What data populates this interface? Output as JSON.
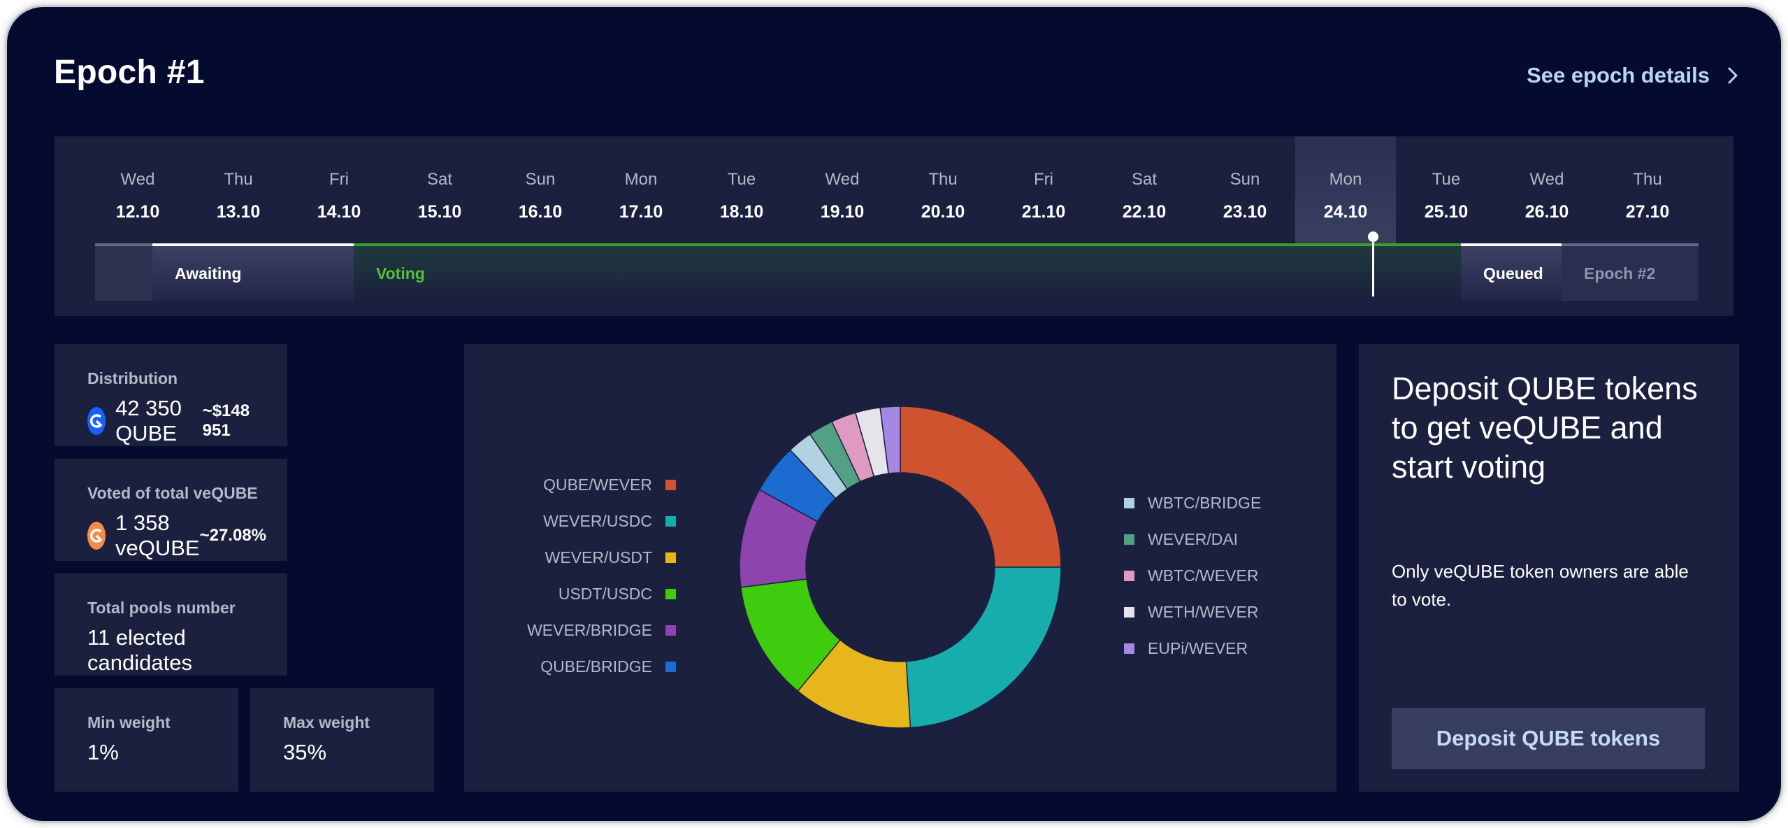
{
  "header": {
    "title": "Epoch #1",
    "details_link": "See epoch details"
  },
  "timeline": {
    "days": [
      {
        "name": "Wed",
        "date": "12.10"
      },
      {
        "name": "Thu",
        "date": "13.10"
      },
      {
        "name": "Fri",
        "date": "14.10"
      },
      {
        "name": "Sat",
        "date": "15.10"
      },
      {
        "name": "Sun",
        "date": "16.10"
      },
      {
        "name": "Mon",
        "date": "17.10"
      },
      {
        "name": "Tue",
        "date": "18.10"
      },
      {
        "name": "Wed",
        "date": "19.10"
      },
      {
        "name": "Thu",
        "date": "20.10"
      },
      {
        "name": "Fri",
        "date": "21.10"
      },
      {
        "name": "Sat",
        "date": "22.10"
      },
      {
        "name": "Sun",
        "date": "23.10"
      },
      {
        "name": "Mon",
        "date": "24.10"
      },
      {
        "name": "Tue",
        "date": "25.10"
      },
      {
        "name": "Wed",
        "date": "26.10"
      },
      {
        "name": "Thu",
        "date": "27.10"
      }
    ],
    "current_day_index": 12,
    "phases": {
      "awaiting": "Awaiting",
      "voting": "Voting",
      "queued": "Queued",
      "next": "Epoch #2"
    }
  },
  "stats": {
    "distribution": {
      "label": "Distribution",
      "amount": "42 350 QUBE",
      "usd": "~$148 951"
    },
    "voted": {
      "label": "Voted of total veQUBE",
      "amount": "1 358 veQUBE",
      "percent": "~27.08%"
    },
    "pools": {
      "label": "Total pools number",
      "value": "11 elected candidates"
    },
    "min_weight": {
      "label": "Min weight",
      "value": "1%"
    },
    "max_weight": {
      "label": "Max weight",
      "value": "35%"
    }
  },
  "chart_data": {
    "type": "pie",
    "slices": [
      {
        "name": "QUBE/WEVER",
        "value": 25,
        "color": "#d0532f"
      },
      {
        "name": "WEVER/USDC",
        "value": 24,
        "color": "#18adad"
      },
      {
        "name": "WEVER/USDT",
        "value": 12,
        "color": "#e7b61c"
      },
      {
        "name": "USDT/USDC",
        "value": 12,
        "color": "#3fcc0f"
      },
      {
        "name": "WEVER/BRIDGE",
        "value": 10,
        "color": "#8d44ad"
      },
      {
        "name": "QUBE/BRIDGE",
        "value": 5,
        "color": "#1b6bd0"
      },
      {
        "name": "WBTC/BRIDGE",
        "value": 2.5,
        "color": "#b2d1e0"
      },
      {
        "name": "WEVER/DAI",
        "value": 2.5,
        "color": "#53a184"
      },
      {
        "name": "WBTC/WEVER",
        "value": 2.5,
        "color": "#e09ac1"
      },
      {
        "name": "WETH/WEVER",
        "value": 2.5,
        "color": "#e5e4ea"
      },
      {
        "name": "EUPi/WEVER",
        "value": 2,
        "color": "#a488e2"
      }
    ],
    "legend_left": [
      0,
      1,
      2,
      3,
      4,
      5
    ],
    "legend_right": [
      6,
      7,
      8,
      9,
      10
    ]
  },
  "deposit": {
    "headline": "Deposit QUBE tokens to get veQUBE and start voting",
    "note": "Only veQUBE token owners are able to vote.",
    "button": "Deposit QUBE tokens"
  }
}
